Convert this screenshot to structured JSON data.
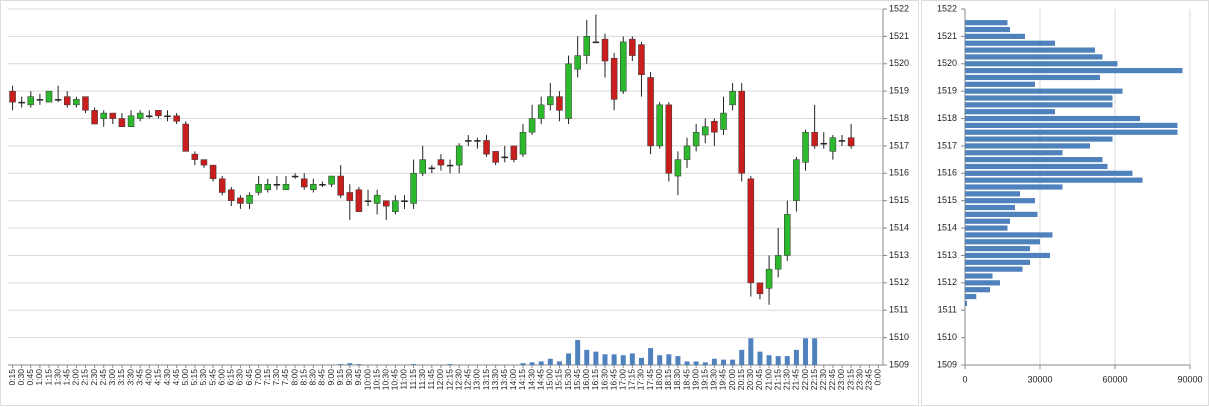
{
  "chart_data": [
    {
      "type": "candlestick",
      "categories": [
        "0:15",
        "0:30",
        "0:45",
        "1:00",
        "1:15",
        "1:30",
        "1:45",
        "2:00",
        "2:15",
        "2:30",
        "2:45",
        "3:00",
        "3:15",
        "3:30",
        "3:45",
        "4:00",
        "4:15",
        "4:30",
        "4:45",
        "5:00",
        "5:15",
        "5:30",
        "5:45",
        "6:00",
        "6:15",
        "6:30",
        "6:45",
        "7:00",
        "7:15",
        "7:30",
        "7:45",
        "8:00",
        "8:15",
        "8:30",
        "8:45",
        "9:00",
        "9:15",
        "9:30",
        "9:45",
        "10:00",
        "10:15",
        "10:30",
        "10:45",
        "11:00",
        "11:15",
        "11:30",
        "11:45",
        "12:00",
        "12:15",
        "12:30",
        "12:45",
        "13:00",
        "13:15",
        "13:30",
        "13:45",
        "14:00",
        "14:15",
        "14:30",
        "14:45",
        "15:00",
        "15:15",
        "15:30",
        "15:45",
        "16:00",
        "16:15",
        "16:30",
        "16:45",
        "17:00",
        "17:15",
        "17:30",
        "17:45",
        "18:00",
        "18:15",
        "18:30",
        "18:45",
        "19:00",
        "19:15",
        "19:30",
        "19:45",
        "20:00",
        "20:15",
        "20:30",
        "20:45",
        "21:00",
        "21:15",
        "21:30",
        "21:45",
        "22:00",
        "22:15",
        "22:30",
        "22:45",
        "23:00",
        "23:15",
        "23:30",
        "23:45",
        "0:00"
      ],
      "open": [
        1519.0,
        1518.6,
        1518.5,
        1518.7,
        1518.6,
        1518.7,
        1518.8,
        1518.5,
        1518.8,
        1518.3,
        1518.0,
        1518.2,
        1518.0,
        1517.7,
        1518.0,
        1518.1,
        1518.3,
        1518.1,
        1518.1,
        1517.8,
        1516.7,
        1516.5,
        1516.3,
        1515.8,
        1515.4,
        1515.1,
        1514.9,
        1515.3,
        1515.4,
        1515.6,
        1515.4,
        1515.9,
        1515.8,
        1515.4,
        1515.6,
        1515.6,
        1515.9,
        1515.3,
        1515.4,
        1515.0,
        1514.9,
        1515.0,
        1514.6,
        1515.0,
        1514.9,
        1516.0,
        1516.2,
        1516.5,
        1516.3,
        1516.3,
        1517.2,
        1517.2,
        1517.2,
        1516.8,
        1516.6,
        1517.0,
        1516.7,
        1517.5,
        1518.0,
        1518.5,
        1518.8,
        1518.0,
        1519.8,
        1520.3,
        1520.8,
        1520.9,
        1520.2,
        1519.0,
        1520.9,
        1520.7,
        1519.5,
        1517.0,
        1518.5,
        1515.9,
        1516.5,
        1517.0,
        1517.4,
        1517.9,
        1517.6,
        1518.5,
        1519.0,
        1515.8,
        1512.0,
        1511.8,
        1512.5,
        1513.0,
        1515.0,
        1516.4,
        1517.5,
        1517.1,
        1516.8,
        1517.2,
        1517.3,
        null,
        null,
        null
      ],
      "high": [
        1519.2,
        1518.8,
        1519.0,
        1518.9,
        1519.0,
        1519.2,
        1519.0,
        1518.8,
        1518.8,
        1518.4,
        1518.3,
        1518.2,
        1518.2,
        1518.3,
        1518.3,
        1518.3,
        1518.3,
        1518.3,
        1518.2,
        1517.9,
        1516.8,
        1516.5,
        1516.3,
        1515.9,
        1515.5,
        1515.2,
        1515.3,
        1515.9,
        1515.8,
        1515.9,
        1515.9,
        1516.0,
        1516.0,
        1515.8,
        1515.7,
        1515.9,
        1516.3,
        1515.6,
        1515.5,
        1515.4,
        1515.4,
        1515.0,
        1515.2,
        1515.2,
        1516.5,
        1517.0,
        1516.3,
        1516.7,
        1516.5,
        1517.1,
        1517.4,
        1517.3,
        1517.4,
        1516.8,
        1517.0,
        1517.0,
        1517.8,
        1518.5,
        1518.8,
        1519.3,
        1519.0,
        1520.3,
        1521.0,
        1521.6,
        1521.8,
        1521.1,
        1520.4,
        1521.0,
        1521.0,
        1520.8,
        1519.7,
        1518.6,
        1518.6,
        1516.8,
        1517.3,
        1517.8,
        1518.0,
        1518.0,
        1518.8,
        1519.3,
        1519.3,
        1515.9,
        1512.0,
        1513.0,
        1514.0,
        1515.0,
        1516.6,
        1517.6,
        1518.5,
        1517.5,
        1517.4,
        1517.4,
        1517.8,
        null,
        null,
        null
      ],
      "low": [
        1518.3,
        1518.4,
        1518.4,
        1518.5,
        1518.6,
        1518.6,
        1518.4,
        1518.4,
        1518.2,
        1517.8,
        1517.7,
        1517.8,
        1517.7,
        1517.7,
        1517.9,
        1518.0,
        1518.0,
        1517.9,
        1517.8,
        1516.8,
        1516.3,
        1516.2,
        1515.7,
        1515.2,
        1514.8,
        1514.7,
        1514.7,
        1515.2,
        1515.3,
        1515.4,
        1515.4,
        1515.8,
        1515.4,
        1515.3,
        1515.5,
        1515.5,
        1515.1,
        1514.3,
        1514.6,
        1514.8,
        1514.5,
        1514.3,
        1514.5,
        1514.7,
        1514.7,
        1515.9,
        1516.0,
        1516.1,
        1516.0,
        1516.0,
        1517.0,
        1516.9,
        1516.6,
        1516.3,
        1516.4,
        1516.4,
        1516.6,
        1517.4,
        1517.8,
        1518.3,
        1517.9,
        1517.8,
        1519.5,
        1520.0,
        1520.8,
        1519.5,
        1518.3,
        1518.9,
        1520.1,
        1518.8,
        1516.7,
        1516.9,
        1515.7,
        1515.2,
        1516.2,
        1516.8,
        1517.1,
        1517.0,
        1517.4,
        1518.3,
        1515.7,
        1511.5,
        1511.4,
        1511.2,
        1512.2,
        1512.8,
        1514.6,
        1516.1,
        1516.9,
        1516.9,
        1516.5,
        1517.0,
        1516.9,
        null,
        null,
        null
      ],
      "close": [
        1518.6,
        1518.6,
        1518.8,
        1518.7,
        1519.0,
        1518.7,
        1518.5,
        1518.7,
        1518.3,
        1517.8,
        1518.2,
        1518.0,
        1517.7,
        1518.1,
        1518.2,
        1518.1,
        1518.1,
        1518.1,
        1517.9,
        1516.8,
        1516.5,
        1516.3,
        1515.8,
        1515.3,
        1515.0,
        1514.9,
        1515.2,
        1515.6,
        1515.6,
        1515.6,
        1515.6,
        1515.9,
        1515.5,
        1515.6,
        1515.6,
        1515.9,
        1515.2,
        1515.0,
        1514.6,
        1515.0,
        1515.2,
        1514.8,
        1515.0,
        1515.0,
        1516.0,
        1516.5,
        1516.2,
        1516.3,
        1516.3,
        1517.0,
        1517.2,
        1517.2,
        1516.7,
        1516.4,
        1516.6,
        1516.5,
        1517.5,
        1518.0,
        1518.5,
        1518.8,
        1518.3,
        1520.0,
        1520.3,
        1521.0,
        1520.8,
        1520.1,
        1518.7,
        1520.8,
        1520.3,
        1519.6,
        1517.0,
        1518.5,
        1516.0,
        1516.5,
        1517.0,
        1517.5,
        1517.7,
        1517.5,
        1518.2,
        1519.0,
        1516.0,
        1512.0,
        1511.6,
        1512.5,
        1513.0,
        1514.5,
        1516.5,
        1517.5,
        1517.0,
        1517.1,
        1517.3,
        1517.2,
        1517.0,
        null,
        null,
        null
      ],
      "up_color": "#2db82d",
      "down_color": "#c81e1e",
      "volume": {
        "axis": "y2",
        "color": "#4f81bd",
        "values": [
          0,
          0,
          0,
          0,
          0,
          0,
          0,
          0,
          0,
          0,
          0,
          0,
          0,
          0,
          0,
          0,
          0,
          0,
          0,
          0,
          0,
          0,
          0,
          0,
          0,
          0,
          0,
          0,
          0,
          0,
          0,
          0,
          0,
          0,
          0,
          0,
          100,
          200,
          100,
          0,
          0,
          0,
          0,
          0,
          100,
          0,
          0,
          0,
          100,
          0,
          0,
          0,
          0,
          0,
          0,
          0,
          200,
          300,
          400,
          700,
          400,
          1300,
          2800,
          1700,
          1500,
          1200,
          1200,
          1100,
          1300,
          800,
          1900,
          1100,
          1200,
          1000,
          400,
          400,
          300,
          700,
          600,
          600,
          1700,
          3000,
          1500,
          1100,
          1000,
          1000,
          1700,
          3000,
          3000,
          0,
          0,
          0,
          0,
          null,
          null,
          null
        ]
      },
      "ylim": [
        1509,
        1522
      ],
      "yticks": [
        1509,
        1510,
        1511,
        1512,
        1513,
        1514,
        1515,
        1516,
        1517,
        1518,
        1519,
        1520,
        1521,
        1522
      ],
      "y2lim": [
        0,
        40000
      ],
      "grid": true
    },
    {
      "type": "barh",
      "y": [
        1521.5,
        1521.25,
        1521,
        1520.75,
        1520.5,
        1520.25,
        1520,
        1519.75,
        1519.5,
        1519.25,
        1519,
        1518.75,
        1518.5,
        1518.25,
        1518,
        1517.75,
        1517.5,
        1517.25,
        1517,
        1516.75,
        1516.5,
        1516.25,
        1516,
        1515.75,
        1515.5,
        1515.25,
        1515,
        1514.75,
        1514.5,
        1514.25,
        1514,
        1513.75,
        1513.5,
        1513.25,
        1513,
        1512.75,
        1512.5,
        1512.25,
        1512,
        1511.75,
        1511.5,
        1511.25
      ],
      "values": [
        17000,
        18000,
        24000,
        36000,
        52000,
        55000,
        61000,
        87000,
        54000,
        28000,
        63000,
        59000,
        59000,
        36000,
        70000,
        85000,
        85000,
        59000,
        50000,
        39000,
        55000,
        57000,
        67000,
        71000,
        39000,
        22000,
        28000,
        20000,
        29000,
        18000,
        17000,
        35000,
        30000,
        26000,
        34000,
        26000,
        23000,
        11000,
        14000,
        10000,
        4500,
        800
      ],
      "color": "#4f81bd",
      "xlim": [
        0,
        90000
      ],
      "xticks": [
        0,
        30000,
        60000,
        90000
      ],
      "ylim": [
        1509,
        1522
      ],
      "yticks": [
        1509,
        1510,
        1511,
        1512,
        1513,
        1514,
        1515,
        1516,
        1517,
        1518,
        1519,
        1520,
        1521,
        1522
      ],
      "grid": true
    }
  ]
}
